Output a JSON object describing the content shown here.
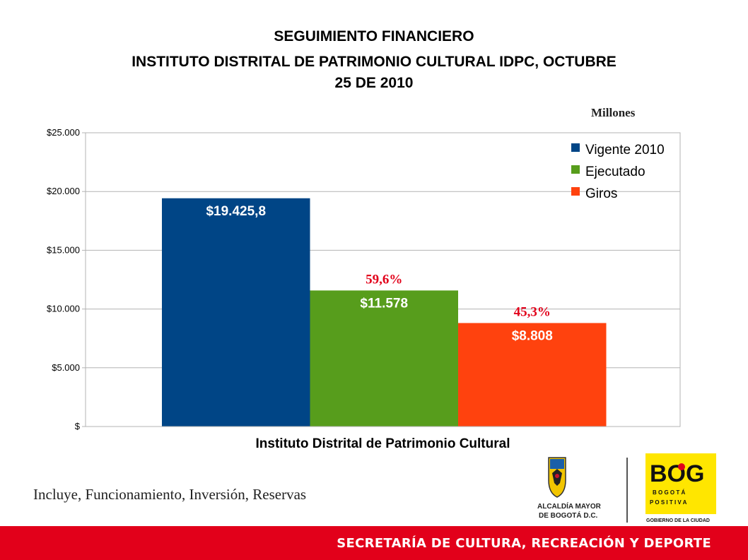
{
  "header": {
    "title_line1": "SEGUIMIENTO FINANCIERO",
    "title_line2": "INSTITUTO DISTRITAL DE PATRIMONIO CULTURAL IDPC,  OCTUBRE",
    "title_line3": "25 DE 2010"
  },
  "unit_label": "Millones",
  "chart_data": {
    "type": "bar",
    "title": "SEGUIMIENTO FINANCIERO INSTITUTO DISTRITAL DE PATRIMONIO CULTURAL IDPC, OCTUBRE 25 DE 2010",
    "xlabel": "Instituto Distrital de Patrimonio Cultural",
    "ylabel": "",
    "ylim": [
      0,
      25000
    ],
    "yticks": [
      0,
      5000,
      10000,
      15000,
      20000,
      25000
    ],
    "ytick_labels": [
      "$",
      "$5.000",
      "$10.000",
      "$15.000",
      "$20.000",
      "$25.000"
    ],
    "grid": true,
    "legend_position": "top-right",
    "categories": [
      "Instituto Distrital de Patrimonio Cultural"
    ],
    "series": [
      {
        "name": "Vigente 2010",
        "values": [
          19425.8
        ],
        "value_label": "$19.425,8",
        "percent_label": "",
        "color": "#004586"
      },
      {
        "name": "Ejecutado",
        "values": [
          11578
        ],
        "value_label": "$11.578",
        "percent_label": "59,6%",
        "color": "#579d1c"
      },
      {
        "name": "Giros",
        "values": [
          8808
        ],
        "value_label": "$8.808",
        "percent_label": "45,3%",
        "color": "#ff420e"
      }
    ]
  },
  "footnote": "Incluye, Funcionamiento, Inversión, Reservas",
  "logos": {
    "alcaldia_line1": "ALCALDÍA MAYOR",
    "alcaldia_line2": "DE BOGOTÁ D.C.",
    "bog_mark": "BOG",
    "bog_line1": "B O G O T Á",
    "bog_line2": "P O S I T I V A",
    "bog_caption": "GOBIERNO DE LA CIUDAD"
  },
  "footer": {
    "text": "SECRETARÍA DE CULTURA, RECREACIÓN Y DEPORTE",
    "color": "#e2001a"
  },
  "colors": {
    "percent_label": "#e2001a"
  }
}
